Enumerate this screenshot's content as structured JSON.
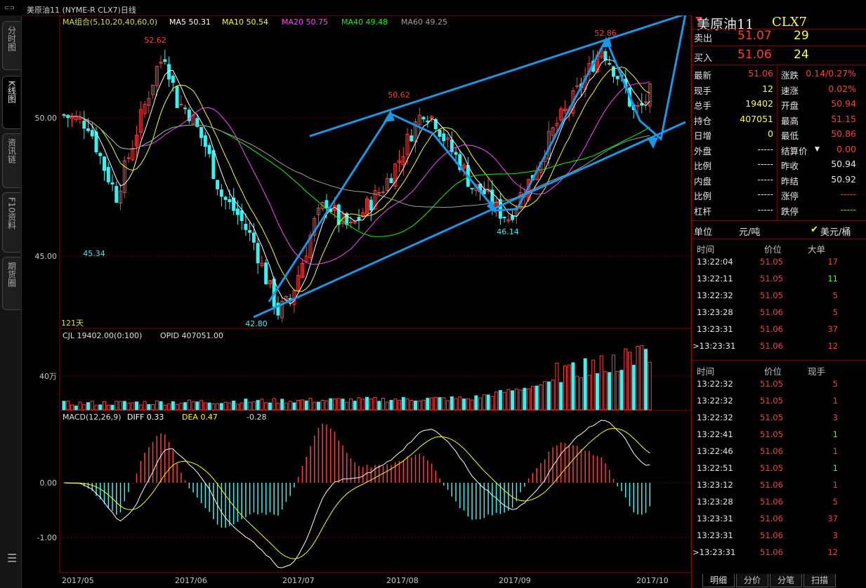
{
  "title": "美原油11 (NYME-R CLX7)日线",
  "nav_tabs": [
    "分时图",
    "K线图",
    "资讯链",
    "F10资料",
    "期货圈"
  ],
  "menu_icon": "menu-icon",
  "ma_legend": {
    "group": "MA组合(5,10,20,40,60,0)",
    "ma5": "MA5 50.31",
    "ma10": "MA10 50.54",
    "ma20": "MA20 50.75",
    "ma40": "MA40 49.48",
    "ma60": "MA60 49.25"
  },
  "ma_colors": {
    "ma5": "#ffffff",
    "ma10": "#ffff00",
    "ma20": "#ff44ff",
    "ma40": "#00ff00",
    "ma60": "#a0a0a0"
  },
  "price_axis": {
    "hi": "50.00",
    "lo": "45.00"
  },
  "price_labels": {
    "p1": "52.62",
    "p2": "45.34",
    "p3": "42.80",
    "p4": "50.62",
    "p5": "46.14",
    "p6": "52.86"
  },
  "days_label": "121天",
  "volume": {
    "legend_cjl": "CJL  19402.00(0:100)",
    "legend_opid": "OPID  407051.00",
    "axis": "40万"
  },
  "macd": {
    "legend": "MACD(12,26,9)",
    "diff": "DIFF  0.33",
    "dea": "DEA  0.47",
    "macd_val": "-0.28",
    "axis_zero": "0.00",
    "axis_neg": "-1.00"
  },
  "x_axis": [
    "2017/05",
    "2017/06",
    "2017/07",
    "2017/08",
    "2017/09",
    "2017/10"
  ],
  "quote": {
    "name": "美原油11",
    "code": "CLX7",
    "sell_label": "卖出",
    "sell_price": "51.07",
    "sell_vol": "29",
    "buy_label": "买入",
    "buy_price": "51.06",
    "buy_vol": "24",
    "rows": [
      {
        "l1": "最新",
        "v1": "51.06",
        "l2": "涨跌",
        "v2": "0.14/0.27%"
      },
      {
        "l1": "现手",
        "v1": "12",
        "l2": "速涨",
        "v2": "0.02%"
      },
      {
        "l1": "总手",
        "v1": "19402",
        "l2": "开盘",
        "v2": "50.94"
      },
      {
        "l1": "持仓",
        "v1": "407051",
        "l2": "最高",
        "v2": "51.15"
      },
      {
        "l1": "日增",
        "v1": "0",
        "l2": "最低",
        "v2": "50.86"
      },
      {
        "l1": "外盘",
        "v1": "-----",
        "l2": "结算价",
        "v2": "0.00"
      },
      {
        "l1": "比例",
        "v1": "-----",
        "l2": "昨收",
        "v2": "50.94"
      },
      {
        "l1": "内盘",
        "v1": "-----",
        "l2": "昨结",
        "v2": "50.92"
      },
      {
        "l1": "比例",
        "v1": "-----",
        "l2": "涨停",
        "v2": "-----"
      },
      {
        "l1": "杠杆",
        "v1": "-----",
        "l2": "跌停",
        "v2": "-----"
      }
    ],
    "unit_label": "单位",
    "unit_ton": "元/吨",
    "unit_bbl": "美元/桶"
  },
  "ticks_a": {
    "headers": [
      "时间",
      "价位",
      "大单"
    ],
    "rows": [
      [
        "13:22:04",
        "51.05",
        "17"
      ],
      [
        "13:22:11",
        "51.05",
        "11"
      ],
      [
        "13:22:32",
        "51.05",
        "5"
      ],
      [
        "13:23:28",
        "51.06",
        "5"
      ],
      [
        "13:23:31",
        "51.06",
        "37"
      ],
      [
        ">13:23:31",
        "51.06",
        "12"
      ]
    ]
  },
  "ticks_b": {
    "headers": [
      "时间",
      "价位",
      "现手"
    ],
    "rows": [
      [
        "13:22:32",
        "51.05",
        "5"
      ],
      [
        "13:22:32",
        "51.05",
        "1"
      ],
      [
        "13:22:32",
        "51.05",
        "3"
      ],
      [
        "13:22:41",
        "51.05",
        "1"
      ],
      [
        "13:22:46",
        "51.06",
        "1"
      ],
      [
        "13:22:51",
        "51.05",
        "1"
      ],
      [
        "13:23:12",
        "51.06",
        "1"
      ],
      [
        "13:23:28",
        "51.06",
        "5"
      ],
      [
        "13:23:31",
        "51.06",
        "37"
      ],
      [
        "13:23:31",
        "51.06",
        "3"
      ],
      [
        ">13:23:31",
        "51.06",
        "12"
      ]
    ]
  },
  "bottom_tabs": [
    "明细",
    "分价",
    "分笔",
    "扫描"
  ]
}
